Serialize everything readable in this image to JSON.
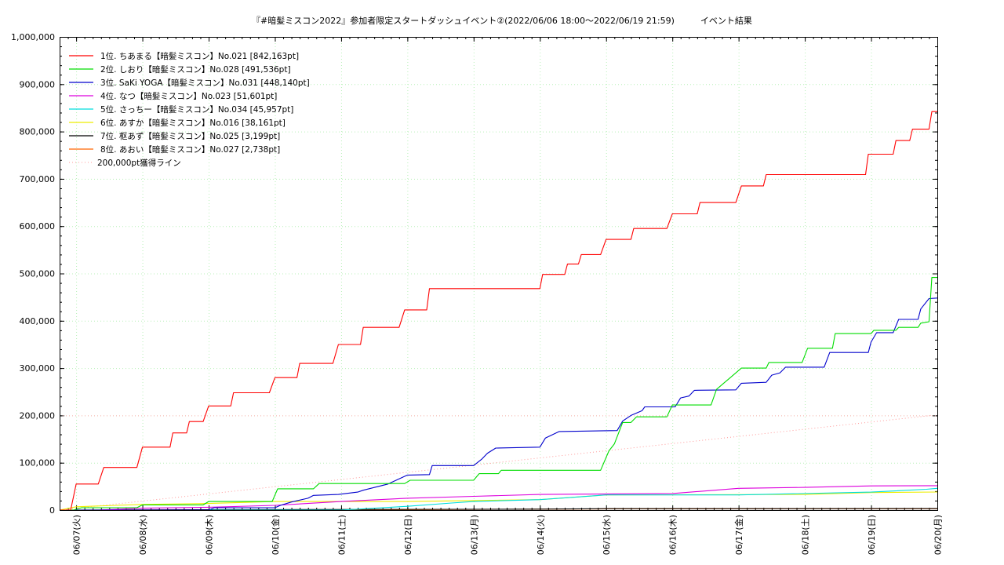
{
  "chart_data": {
    "type": "line",
    "title": "『#暗髪ミスコン2022』参加者限定スタートダッシュイベント②(2022/06/06 18:00〜2022/06/19 21:59)　　　イベント結果",
    "xlabel": "",
    "ylabel": "",
    "x_start": "2022-06-06 18:00",
    "x_end": "2022-06-20 00:00",
    "x_tick_labels": [
      "06/07(火)",
      "06/08(水)",
      "06/09(木)",
      "06/10(金)",
      "06/11(土)",
      "06/12(日)",
      "06/13(月)",
      "06/14(火)",
      "06/15(水)",
      "06/16(木)",
      "06/17(金)",
      "06/18(土)",
      "06/19(日)",
      "06/20(月)"
    ],
    "x_tick_values": [
      "2022-06-07 00:00",
      "2022-06-08 00:00",
      "2022-06-09 00:00",
      "2022-06-10 00:00",
      "2022-06-11 00:00",
      "2022-06-12 00:00",
      "2022-06-13 00:00",
      "2022-06-14 00:00",
      "2022-06-15 00:00",
      "2022-06-16 00:00",
      "2022-06-17 00:00",
      "2022-06-18 00:00",
      "2022-06-19 00:00",
      "2022-06-20 00:00"
    ],
    "ylim": [
      0,
      1000000
    ],
    "y_ticks": [
      0,
      100000,
      200000,
      300000,
      400000,
      500000,
      600000,
      700000,
      800000,
      900000,
      1000000
    ],
    "y_tick_labels": [
      "0",
      "100,000",
      "200,000",
      "300,000",
      "400,000",
      "500,000",
      "600,000",
      "700,000",
      "800,000",
      "900,000",
      "1,000,000"
    ],
    "grid": true,
    "legend_position": "top-left",
    "series": [
      {
        "name": "1位. ちあまる【暗髪ミスコン】No.021 [842,163pt]",
        "color": "#ff0000",
        "points": [
          [
            "2022-06-06 18:00",
            0
          ],
          [
            "2022-06-06 22:00",
            0
          ],
          [
            "2022-06-07 00:00",
            55000
          ],
          [
            "2022-06-07 08:00",
            55000
          ],
          [
            "2022-06-07 10:00",
            90000
          ],
          [
            "2022-06-07 22:00",
            90000
          ],
          [
            "2022-06-08 00:00",
            133000
          ],
          [
            "2022-06-08 10:00",
            133000
          ],
          [
            "2022-06-08 11:00",
            163000
          ],
          [
            "2022-06-08 16:00",
            163000
          ],
          [
            "2022-06-08 17:00",
            187000
          ],
          [
            "2022-06-08 22:00",
            187000
          ],
          [
            "2022-06-09 00:00",
            220000
          ],
          [
            "2022-06-09 08:00",
            220000
          ],
          [
            "2022-06-09 09:00",
            248000
          ],
          [
            "2022-06-09 22:00",
            248000
          ],
          [
            "2022-06-10 00:00",
            280000
          ],
          [
            "2022-06-10 08:00",
            280000
          ],
          [
            "2022-06-10 09:00",
            310000
          ],
          [
            "2022-06-10 21:00",
            310000
          ],
          [
            "2022-06-10 23:00",
            350000
          ],
          [
            "2022-06-11 07:00",
            350000
          ],
          [
            "2022-06-11 08:00",
            386000
          ],
          [
            "2022-06-11 21:00",
            386000
          ],
          [
            "2022-06-11 23:00",
            423000
          ],
          [
            "2022-06-12 07:00",
            423000
          ],
          [
            "2022-06-12 08:00",
            468000
          ],
          [
            "2022-06-14 00:00",
            468000
          ],
          [
            "2022-06-14 01:00",
            498000
          ],
          [
            "2022-06-14 09:00",
            498000
          ],
          [
            "2022-06-14 10:00",
            520000
          ],
          [
            "2022-06-14 14:00",
            520000
          ],
          [
            "2022-06-14 15:00",
            540000
          ],
          [
            "2022-06-14 22:00",
            540000
          ],
          [
            "2022-06-15 00:00",
            572000
          ],
          [
            "2022-06-15 09:00",
            572000
          ],
          [
            "2022-06-15 10:00",
            595000
          ],
          [
            "2022-06-15 22:00",
            595000
          ],
          [
            "2022-06-16 00:00",
            626000
          ],
          [
            "2022-06-16 09:00",
            626000
          ],
          [
            "2022-06-16 10:00",
            650000
          ],
          [
            "2022-06-16 23:00",
            650000
          ],
          [
            "2022-06-17 01:00",
            685000
          ],
          [
            "2022-06-17 09:00",
            685000
          ],
          [
            "2022-06-17 10:00",
            709000
          ],
          [
            "2022-06-18 22:00",
            709000
          ],
          [
            "2022-06-18 23:00",
            752000
          ],
          [
            "2022-06-19 08:00",
            752000
          ],
          [
            "2022-06-19 09:00",
            781000
          ],
          [
            "2022-06-19 14:00",
            781000
          ],
          [
            "2022-06-19 15:00",
            805000
          ],
          [
            "2022-06-19 21:00",
            805000
          ],
          [
            "2022-06-19 22:00",
            842163
          ],
          [
            "2022-06-20 00:00",
            842163
          ]
        ]
      },
      {
        "name": "2位. しおり【暗髪ミスコン】No.028 [491,536pt]",
        "color": "#00dd00",
        "points": [
          [
            "2022-06-06 18:00",
            0
          ],
          [
            "2022-06-06 23:00",
            0
          ],
          [
            "2022-06-07 02:00",
            5000
          ],
          [
            "2022-06-07 22:00",
            5000
          ],
          [
            "2022-06-08 00:00",
            11000
          ],
          [
            "2022-06-08 22:00",
            11000
          ],
          [
            "2022-06-09 00:00",
            18000
          ],
          [
            "2022-06-09 23:00",
            18000
          ],
          [
            "2022-06-10 01:00",
            45000
          ],
          [
            "2022-06-10 14:00",
            45000
          ],
          [
            "2022-06-10 16:00",
            56000
          ],
          [
            "2022-06-11 23:00",
            56000
          ],
          [
            "2022-06-12 01:00",
            63000
          ],
          [
            "2022-06-13 00:00",
            63000
          ],
          [
            "2022-06-13 02:00",
            77000
          ],
          [
            "2022-06-13 09:00",
            77000
          ],
          [
            "2022-06-13 10:00",
            84000
          ],
          [
            "2022-06-14 22:00",
            84000
          ],
          [
            "2022-06-15 01:00",
            125000
          ],
          [
            "2022-06-15 03:00",
            140000
          ],
          [
            "2022-06-15 06:00",
            185000
          ],
          [
            "2022-06-15 09:00",
            185000
          ],
          [
            "2022-06-15 11:00",
            197000
          ],
          [
            "2022-06-15 22:00",
            197000
          ],
          [
            "2022-06-16 00:00",
            222000
          ],
          [
            "2022-06-16 14:00",
            222000
          ],
          [
            "2022-06-16 16:00",
            255000
          ],
          [
            "2022-06-16 19:00",
            270000
          ],
          [
            "2022-06-16 21:00",
            280000
          ],
          [
            "2022-06-17 01:00",
            300000
          ],
          [
            "2022-06-17 10:00",
            300000
          ],
          [
            "2022-06-17 11:00",
            312000
          ],
          [
            "2022-06-17 23:00",
            312000
          ],
          [
            "2022-06-18 01:00",
            342000
          ],
          [
            "2022-06-18 10:00",
            342000
          ],
          [
            "2022-06-18 11:00",
            373000
          ],
          [
            "2022-06-19 00:00",
            373000
          ],
          [
            "2022-06-19 01:00",
            380000
          ],
          [
            "2022-06-19 09:00",
            380000
          ],
          [
            "2022-06-19 10:00",
            386000
          ],
          [
            "2022-06-19 17:00",
            386000
          ],
          [
            "2022-06-19 18:00",
            395000
          ],
          [
            "2022-06-19 21:00",
            398000
          ],
          [
            "2022-06-19 22:00",
            491536
          ],
          [
            "2022-06-20 00:00",
            491536
          ]
        ]
      },
      {
        "name": "3位. SaKi YOGA【暗髪ミスコン】No.031 [448,140pt]",
        "color": "#0000cc",
        "points": [
          [
            "2022-06-06 18:00",
            0
          ],
          [
            "2022-06-09 00:00",
            0
          ],
          [
            "2022-06-09 02:00",
            5000
          ],
          [
            "2022-06-10 00:00",
            5000
          ],
          [
            "2022-06-10 02:00",
            10000
          ],
          [
            "2022-06-10 06:00",
            17000
          ],
          [
            "2022-06-10 12:00",
            25000
          ],
          [
            "2022-06-10 14:00",
            31000
          ],
          [
            "2022-06-10 23:00",
            33000
          ],
          [
            "2022-06-11 06:00",
            38000
          ],
          [
            "2022-06-11 08:00",
            42000
          ],
          [
            "2022-06-11 17:00",
            55000
          ],
          [
            "2022-06-11 21:00",
            66000
          ],
          [
            "2022-06-12 00:00",
            74000
          ],
          [
            "2022-06-12 08:00",
            75000
          ],
          [
            "2022-06-12 09:00",
            94000
          ],
          [
            "2022-06-13 00:00",
            94000
          ],
          [
            "2022-06-13 03:00",
            108000
          ],
          [
            "2022-06-13 05:00",
            120000
          ],
          [
            "2022-06-13 08:00",
            131000
          ],
          [
            "2022-06-14 00:00",
            133000
          ],
          [
            "2022-06-14 02:00",
            152000
          ],
          [
            "2022-06-14 07:00",
            166000
          ],
          [
            "2022-06-15 04:00",
            168000
          ],
          [
            "2022-06-15 06:00",
            188000
          ],
          [
            "2022-06-15 09:00",
            200000
          ],
          [
            "2022-06-15 13:00",
            210000
          ],
          [
            "2022-06-15 14:00",
            218000
          ],
          [
            "2022-06-16 01:00",
            218000
          ],
          [
            "2022-06-16 03:00",
            237000
          ],
          [
            "2022-06-16 06:00",
            241000
          ],
          [
            "2022-06-16 08:00",
            253000
          ],
          [
            "2022-06-16 23:00",
            254000
          ],
          [
            "2022-06-17 01:00",
            268000
          ],
          [
            "2022-06-17 10:00",
            270000
          ],
          [
            "2022-06-17 12:00",
            285000
          ],
          [
            "2022-06-17 15:00",
            290000
          ],
          [
            "2022-06-17 17:00",
            302000
          ],
          [
            "2022-06-18 07:00",
            302000
          ],
          [
            "2022-06-18 09:00",
            333000
          ],
          [
            "2022-06-18 23:00",
            333000
          ],
          [
            "2022-06-19 00:00",
            355000
          ],
          [
            "2022-06-19 02:00",
            375000
          ],
          [
            "2022-06-19 08:00",
            375000
          ],
          [
            "2022-06-19 10:00",
            403000
          ],
          [
            "2022-06-19 17:00",
            403000
          ],
          [
            "2022-06-19 18:00",
            425000
          ],
          [
            "2022-06-19 21:00",
            447000
          ],
          [
            "2022-06-20 00:00",
            448140
          ]
        ]
      },
      {
        "name": "4位. なつ【暗髪ミスコン】No.023 [51,601pt]",
        "color": "#dd00dd",
        "points": [
          [
            "2022-06-06 18:00",
            0
          ],
          [
            "2022-06-07 08:00",
            0
          ],
          [
            "2022-06-08 00:00",
            4000
          ],
          [
            "2022-06-09 00:00",
            6000
          ],
          [
            "2022-06-10 00:00",
            10000
          ],
          [
            "2022-06-11 00:00",
            18000
          ],
          [
            "2022-06-12 00:00",
            25000
          ],
          [
            "2022-06-13 00:00",
            29000
          ],
          [
            "2022-06-14 00:00",
            33000
          ],
          [
            "2022-06-16 00:00",
            35000
          ],
          [
            "2022-06-17 00:00",
            46000
          ],
          [
            "2022-06-18 00:00",
            48000
          ],
          [
            "2022-06-19 00:00",
            51000
          ],
          [
            "2022-06-20 00:00",
            51601
          ]
        ]
      },
      {
        "name": "5位. さっちー【暗髪ミスコン】No.034 [45,957pt]",
        "color": "#00dddd",
        "points": [
          [
            "2022-06-06 18:00",
            0
          ],
          [
            "2022-06-11 00:00",
            0
          ],
          [
            "2022-06-12 00:00",
            8000
          ],
          [
            "2022-06-12 16:00",
            15000
          ],
          [
            "2022-06-13 00:00",
            18000
          ],
          [
            "2022-06-14 00:00",
            22000
          ],
          [
            "2022-06-15 00:00",
            32000
          ],
          [
            "2022-06-17 00:00",
            32000
          ],
          [
            "2022-06-19 00:00",
            38000
          ],
          [
            "2022-06-19 20:00",
            44000
          ],
          [
            "2022-06-20 00:00",
            45957
          ]
        ]
      },
      {
        "name": "6位. あすか【暗髪ミスコン】No.016 [38,161pt]",
        "color": "#eeee00",
        "points": [
          [
            "2022-06-06 18:00",
            0
          ],
          [
            "2022-06-07 00:00",
            7000
          ],
          [
            "2022-06-08 00:00",
            12000
          ],
          [
            "2022-06-09 00:00",
            14000
          ],
          [
            "2022-06-10 00:00",
            18000
          ],
          [
            "2022-06-12 00:00",
            18000
          ],
          [
            "2022-06-13 00:00",
            20000
          ],
          [
            "2022-06-14 00:00",
            22000
          ],
          [
            "2022-06-15 00:00",
            32000
          ],
          [
            "2022-06-18 00:00",
            33000
          ],
          [
            "2022-06-19 00:00",
            37000
          ],
          [
            "2022-06-20 00:00",
            38161
          ]
        ]
      },
      {
        "name": "7位. 枢あず【暗髪ミスコン】No.025 [3,199pt]",
        "color": "#000000",
        "points": [
          [
            "2022-06-06 18:00",
            0
          ],
          [
            "2022-06-10 00:00",
            1000
          ],
          [
            "2022-06-14 00:00",
            2000
          ],
          [
            "2022-06-15 00:00",
            3000
          ],
          [
            "2022-06-20 00:00",
            3199
          ]
        ]
      },
      {
        "name": "8位. あおい【暗髪ミスコン】No.027 [2,738pt]",
        "color": "#ff6600",
        "points": [
          [
            "2022-06-06 18:00",
            0
          ],
          [
            "2022-06-12 00:00",
            1000
          ],
          [
            "2022-06-15 00:00",
            2500
          ],
          [
            "2022-06-20 00:00",
            2738
          ]
        ]
      }
    ],
    "reference_line": {
      "name": "200,000pt獲得ライン",
      "color": "#ff9999",
      "style": "dotted",
      "points": [
        [
          "2022-06-06 18:00",
          0
        ],
        [
          "2022-06-19 21:59",
          200000
        ]
      ]
    }
  }
}
